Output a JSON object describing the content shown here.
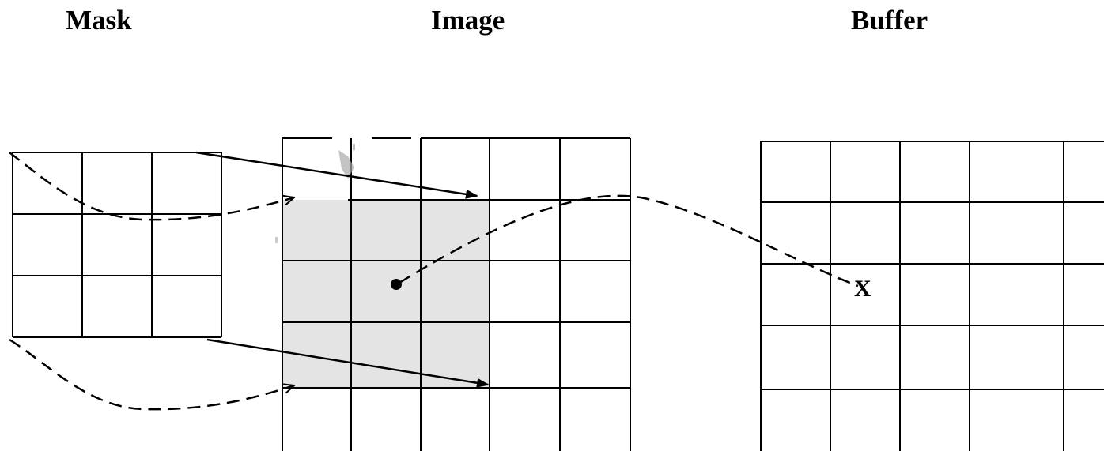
{
  "titles": {
    "mask": "Mask",
    "image": "Image",
    "buffer": "Buffer"
  },
  "buffer_marker": "X",
  "grids": {
    "mask": {
      "rows": 3,
      "cols": 3
    },
    "image": {
      "rows": 5,
      "cols": 5,
      "highlight_rows": 3,
      "highlight_cols": 3
    },
    "buffer": {
      "rows": 5,
      "cols": 5
    }
  },
  "colors": {
    "line": "#000000",
    "highlight": "#e4e4e4",
    "background": "#ffffff"
  }
}
